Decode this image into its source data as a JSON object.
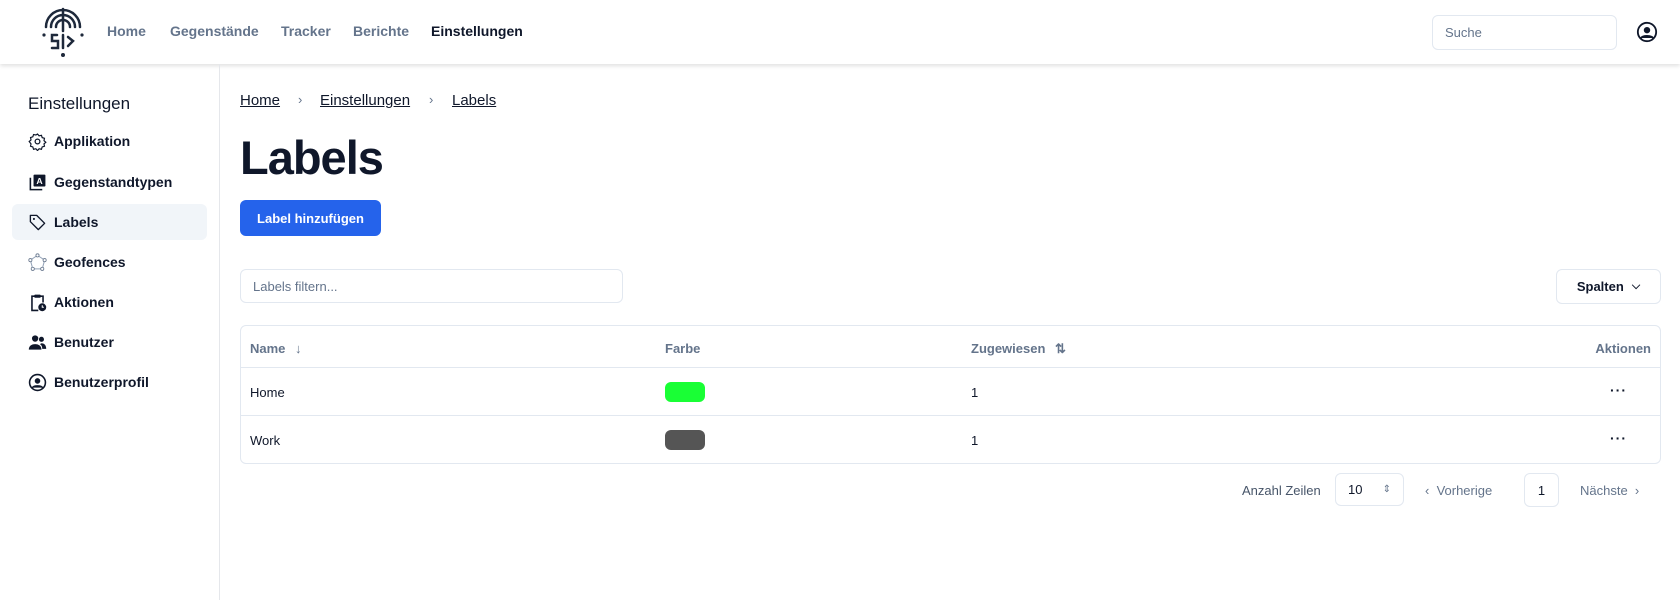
{
  "header": {
    "nav": [
      "Home",
      "Gegenstände",
      "Tracker",
      "Berichte",
      "Einstellungen"
    ],
    "active": "Einstellungen",
    "search_placeholder": "Suche"
  },
  "sidebar": {
    "title": "Einstellungen",
    "items": [
      {
        "label": "Applikation",
        "icon": "gear-icon"
      },
      {
        "label": "Gegenstandtypen",
        "icon": "letter-a-stack-icon"
      },
      {
        "label": "Labels",
        "icon": "tag-icon"
      },
      {
        "label": "Geofences",
        "icon": "polygon-icon"
      },
      {
        "label": "Aktionen",
        "icon": "clipboard-clock-icon"
      },
      {
        "label": "Benutzer",
        "icon": "users-icon"
      },
      {
        "label": "Benutzerprofil",
        "icon": "user-circle-icon"
      }
    ],
    "active": "Labels"
  },
  "breadcrumb": [
    "Home",
    "Einstellungen",
    "Labels"
  ],
  "page": {
    "title": "Labels",
    "add_label": "Label hinzufügen",
    "filter_placeholder": "Labels filtern...",
    "columns_button": "Spalten"
  },
  "table": {
    "headers": [
      "Name",
      "Farbe",
      "Zugewiesen",
      "Aktionen"
    ],
    "rows": [
      {
        "name": "Home",
        "color": "#19ff35",
        "assigned": "1"
      },
      {
        "name": "Work",
        "color": "#555555",
        "assigned": "1"
      }
    ]
  },
  "pagination": {
    "rows_label": "Anzahl Zeilen",
    "rows_value": "10",
    "prev": "Vorherige",
    "page": "1",
    "next": "Nächste"
  },
  "colors": {
    "primary": "#2563eb"
  }
}
